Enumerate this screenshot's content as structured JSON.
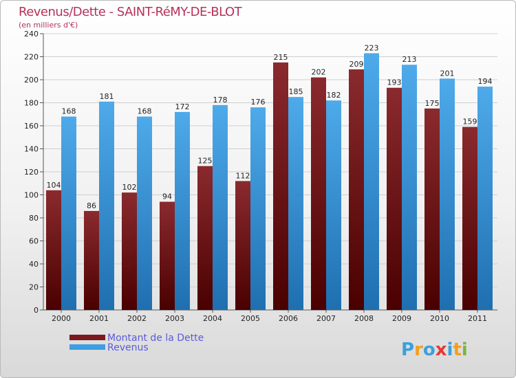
{
  "chart_data": {
    "type": "bar",
    "title": "Revenus/Dette - SAINT-RéMY-DE-BLOT",
    "subtitle": "(en milliers d'€)",
    "categories": [
      "2000",
      "2001",
      "2002",
      "2003",
      "2004",
      "2005",
      "2006",
      "2007",
      "2008",
      "2009",
      "2010",
      "2011"
    ],
    "series": [
      {
        "name": "Montant de la Dette",
        "color": "#7a1a1e",
        "values": [
          104,
          86,
          102,
          94,
          125,
          112,
          215,
          202,
          209,
          193,
          175,
          159
        ]
      },
      {
        "name": "Revenus",
        "color": "#3d9ee0",
        "values": [
          168,
          181,
          168,
          172,
          178,
          176,
          185,
          182,
          223,
          213,
          201,
          194
        ]
      }
    ],
    "ylim": [
      0,
      240
    ],
    "yticks": [
      0,
      20,
      40,
      60,
      80,
      100,
      120,
      140,
      160,
      180,
      200,
      220,
      240
    ],
    "grid": true,
    "legend_position": "bottom-left"
  },
  "brand": {
    "letters": [
      "P",
      "r",
      "o",
      "x",
      "i",
      "t",
      "i"
    ],
    "colors": [
      "#3aa0dc",
      "#f0a020",
      "#3aa0dc",
      "#e53935",
      "#3aa0dc",
      "#f0a020",
      "#7cb342"
    ]
  }
}
